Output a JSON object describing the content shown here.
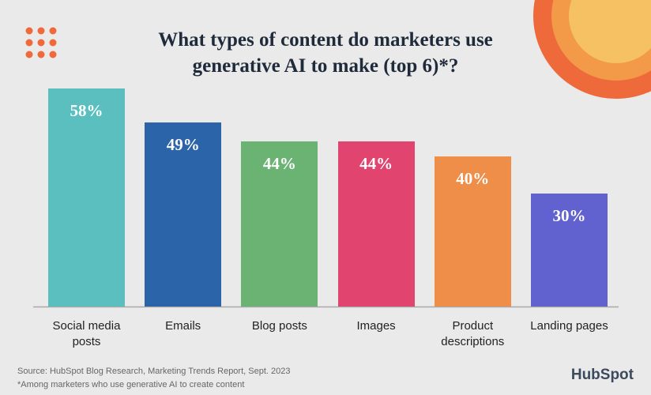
{
  "chart_data": {
    "type": "bar",
    "title": "What types of content do marketers use generative AI to make (top 6)*?",
    "categories": [
      "Social media posts",
      "Emails",
      "Blog posts",
      "Images",
      "Product descriptions",
      "Landing pages"
    ],
    "values": [
      58,
      49,
      44,
      44,
      40,
      30
    ],
    "value_labels": [
      "58%",
      "49%",
      "44%",
      "44%",
      "40%",
      "30%"
    ],
    "colors": [
      "#5bbfbf",
      "#2c64a9",
      "#6bb372",
      "#e1456f",
      "#ef8e48",
      "#6261d0"
    ],
    "source": "Source: HubSpot Blog Research, Marketing Trends Report, Sept. 2023",
    "note": "*Among marketers who use generative AI to create content",
    "logo": "HubSpot"
  }
}
